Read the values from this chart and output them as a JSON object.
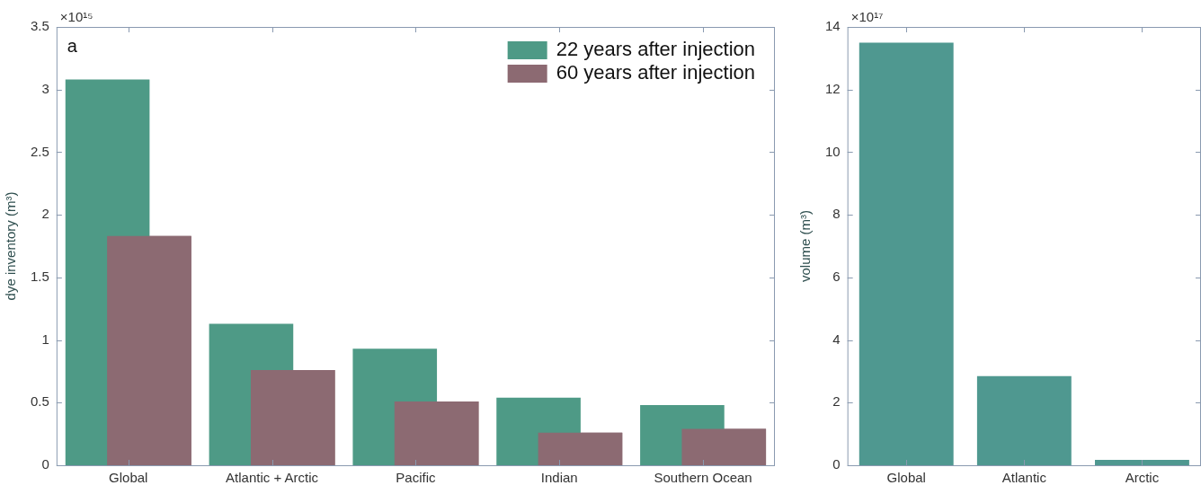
{
  "chart_data": [
    {
      "type": "bar",
      "categories": [
        "Global",
        "Atlantic + Arctic",
        "Pacific",
        "Indian",
        "Southern Ocean"
      ],
      "ylabel": "dye inventory (m³)",
      "ylim": [
        0,
        3.5
      ],
      "yticks": [
        0,
        0.5,
        1,
        1.5,
        2,
        2.5,
        3,
        3.5
      ],
      "series": [
        {
          "name": "22 years after injection",
          "color": "#4e9a86",
          "values": [
            3.08,
            1.13,
            0.93,
            0.54,
            0.48
          ]
        },
        {
          "name": "60 years after injection",
          "color": "#8c6a72",
          "values": [
            1.83,
            0.76,
            0.51,
            0.26,
            0.29
          ]
        }
      ],
      "legend": "top right",
      "annotations": [
        "a",
        "×10¹⁵"
      ]
    },
    {
      "type": "bar",
      "categories": [
        "Global",
        "Atlantic",
        "Arctic"
      ],
      "ylabel": "volume (m³)",
      "ylim": [
        0,
        14
      ],
      "yticks": [
        0,
        2,
        4,
        6,
        8,
        10,
        12,
        14
      ],
      "series": [
        {
          "color": "#4f9890",
          "values": [
            13.5,
            2.85,
            0.17
          ]
        }
      ],
      "annotations": [
        "×10¹⁷"
      ]
    }
  ]
}
